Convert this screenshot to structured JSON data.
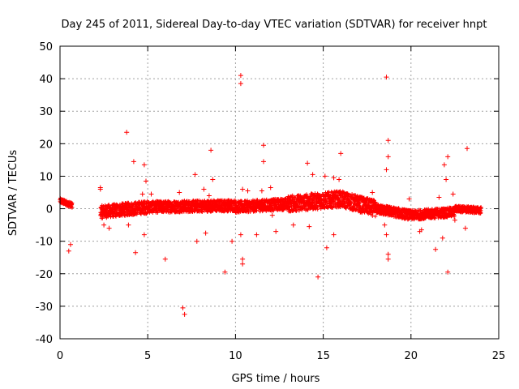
{
  "chart_data": {
    "type": "scatter",
    "title": "Day 245 of 2011, Sidereal Day-to-day VTEC variation (SDTVAR) for receiver hnpt",
    "xlabel": "GPS time / hours",
    "ylabel": "SDTVAR / TECUs",
    "xlim": [
      0,
      25
    ],
    "ylim": [
      -40,
      50
    ],
    "xticks": [
      "0",
      "5",
      "10",
      "15",
      "20",
      "25"
    ],
    "yticks": [
      "50",
      "40",
      "30",
      "20",
      "10",
      "0",
      "-10",
      "-20",
      "-30",
      "-40"
    ],
    "grid": true,
    "marker": "+",
    "color": "#ff0000",
    "dense_band": {
      "description": "near-continuous band of points",
      "segments": [
        {
          "x": [
            0.0,
            0.7
          ],
          "y_center": [
            2.5,
            1.0
          ],
          "spread": 0.8
        },
        {
          "x": [
            2.3,
            5.0
          ],
          "y_center": [
            -1.0,
            0.5
          ],
          "spread": 2.0
        },
        {
          "x": [
            5.0,
            10.0
          ],
          "y_center": [
            0.5,
            1.0
          ],
          "spread": 1.8
        },
        {
          "x": [
            10.0,
            13.0
          ],
          "y_center": [
            0.5,
            1.5
          ],
          "spread": 1.8
        },
        {
          "x": [
            13.0,
            16.0
          ],
          "y_center": [
            1.5,
            3.0
          ],
          "spread": 2.5
        },
        {
          "x": [
            16.0,
            18.0
          ],
          "y_center": [
            3.0,
            0.0
          ],
          "spread": 2.5
        },
        {
          "x": [
            18.0,
            20.0
          ],
          "y_center": [
            0.0,
            -2.0
          ],
          "spread": 1.5
        },
        {
          "x": [
            20.0,
            22.5
          ],
          "y_center": [
            -2.0,
            -1.0
          ],
          "spread": 1.5
        },
        {
          "x": [
            22.5,
            24.0
          ],
          "y_center": [
            0.0,
            -0.5
          ],
          "spread": 1.0
        }
      ]
    },
    "outliers": [
      [
        3.8,
        23.5
      ],
      [
        4.2,
        14.5
      ],
      [
        4.8,
        13.5
      ],
      [
        4.9,
        8.5
      ],
      [
        4.7,
        4.5
      ],
      [
        5.2,
        4.5
      ],
      [
        4.3,
        -13.5
      ],
      [
        4.8,
        -8.0
      ],
      [
        3.9,
        -5.0
      ],
      [
        6.0,
        -15.5
      ],
      [
        6.8,
        5.0
      ],
      [
        7.0,
        -30.5
      ],
      [
        7.1,
        -32.5
      ],
      [
        7.7,
        10.5
      ],
      [
        7.8,
        -10.0
      ],
      [
        8.2,
        6.0
      ],
      [
        8.6,
        18.0
      ],
      [
        8.7,
        9.0
      ],
      [
        8.3,
        -7.5
      ],
      [
        9.4,
        -19.5
      ],
      [
        9.8,
        -10.0
      ],
      [
        10.3,
        41.0
      ],
      [
        10.3,
        38.5
      ],
      [
        10.4,
        6.0
      ],
      [
        10.4,
        -15.5
      ],
      [
        10.4,
        -17.0
      ],
      [
        10.3,
        -8.0
      ],
      [
        10.7,
        5.5
      ],
      [
        11.2,
        -8.0
      ],
      [
        11.6,
        19.5
      ],
      [
        11.6,
        14.5
      ],
      [
        11.5,
        5.5
      ],
      [
        12.0,
        6.5
      ],
      [
        12.3,
        -7.0
      ],
      [
        14.1,
        14.0
      ],
      [
        14.4,
        10.5
      ],
      [
        14.7,
        -21.0
      ],
      [
        14.2,
        -5.5
      ],
      [
        15.1,
        10.0
      ],
      [
        15.2,
        -12.0
      ],
      [
        15.6,
        -8.0
      ],
      [
        15.6,
        9.5
      ],
      [
        15.9,
        9.0
      ],
      [
        16.0,
        17.0
      ],
      [
        17.8,
        5.0
      ],
      [
        18.6,
        40.5
      ],
      [
        18.7,
        21.0
      ],
      [
        18.7,
        16.0
      ],
      [
        18.6,
        12.0
      ],
      [
        18.7,
        -14.0
      ],
      [
        18.7,
        -15.5
      ],
      [
        18.6,
        -8.0
      ],
      [
        18.5,
        -5.0
      ],
      [
        19.4,
        -2.5
      ],
      [
        21.4,
        -12.5
      ],
      [
        21.9,
        13.5
      ],
      [
        22.0,
        9.0
      ],
      [
        22.1,
        16.0
      ],
      [
        22.1,
        -19.5
      ],
      [
        21.8,
        -9.0
      ],
      [
        21.6,
        3.5
      ],
      [
        20.5,
        -7.0
      ],
      [
        20.6,
        -6.5
      ],
      [
        23.2,
        18.5
      ],
      [
        23.1,
        -6.0
      ],
      [
        0.6,
        -11.0
      ],
      [
        0.5,
        -13.0
      ],
      [
        2.3,
        6.5
      ],
      [
        2.3,
        6.0
      ],
      [
        2.5,
        -5.0
      ],
      [
        2.8,
        -6.0
      ],
      [
        12.1,
        -2.0
      ],
      [
        19.9,
        3.0
      ],
      [
        22.4,
        4.5
      ],
      [
        13.3,
        -5.0
      ],
      [
        17.3,
        2.5
      ],
      [
        22.5,
        -3.5
      ],
      [
        8.5,
        4.0
      ]
    ]
  }
}
